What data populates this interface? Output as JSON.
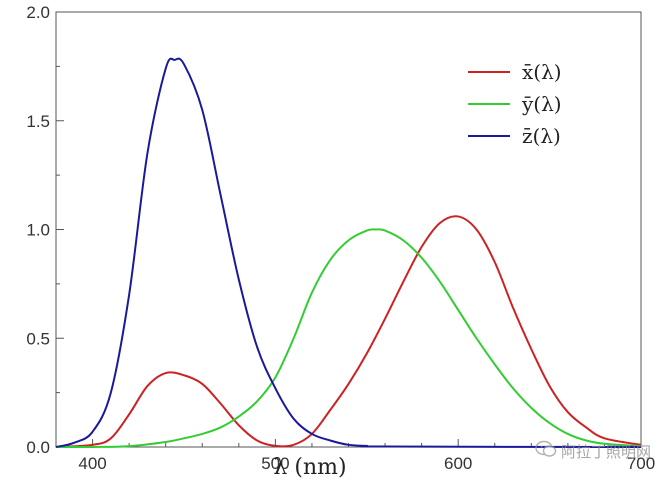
{
  "chart_data": {
    "type": "line",
    "title": "",
    "xlabel": "λ (nm)",
    "ylabel": "",
    "xlim": [
      380,
      700
    ],
    "ylim": [
      0,
      2.0
    ],
    "x_ticks": [
      400,
      500,
      600,
      700
    ],
    "y_ticks": [
      0.0,
      0.5,
      1.0,
      1.5,
      2.0
    ],
    "x_tick_labels": [
      "400",
      "500",
      "600",
      "700"
    ],
    "y_tick_labels": [
      "0.0",
      "0.5",
      "1.0",
      "1.5",
      "2.0"
    ],
    "legend_position": "top-right",
    "grid": false,
    "series": [
      {
        "name": "x̄(λ)",
        "color": "#cc2222",
        "points": [
          [
            380,
            0.0
          ],
          [
            400,
            0.01
          ],
          [
            410,
            0.04
          ],
          [
            420,
            0.15
          ],
          [
            430,
            0.28
          ],
          [
            440,
            0.34
          ],
          [
            450,
            0.33
          ],
          [
            460,
            0.29
          ],
          [
            470,
            0.2
          ],
          [
            480,
            0.1
          ],
          [
            490,
            0.03
          ],
          [
            500,
            0.005
          ],
          [
            510,
            0.01
          ],
          [
            520,
            0.06
          ],
          [
            530,
            0.17
          ],
          [
            540,
            0.29
          ],
          [
            550,
            0.43
          ],
          [
            560,
            0.59
          ],
          [
            570,
            0.76
          ],
          [
            580,
            0.92
          ],
          [
            590,
            1.03
          ],
          [
            600,
            1.06
          ],
          [
            610,
            1.0
          ],
          [
            620,
            0.85
          ],
          [
            630,
            0.64
          ],
          [
            640,
            0.45
          ],
          [
            650,
            0.28
          ],
          [
            660,
            0.16
          ],
          [
            670,
            0.09
          ],
          [
            680,
            0.04
          ],
          [
            700,
            0.01
          ]
        ]
      },
      {
        "name": "ȳ(λ)",
        "color": "#33cc33",
        "points": [
          [
            380,
            0.0
          ],
          [
            400,
            0.0
          ],
          [
            420,
            0.004
          ],
          [
            440,
            0.023
          ],
          [
            450,
            0.04
          ],
          [
            460,
            0.06
          ],
          [
            470,
            0.09
          ],
          [
            480,
            0.14
          ],
          [
            490,
            0.21
          ],
          [
            500,
            0.32
          ],
          [
            510,
            0.5
          ],
          [
            520,
            0.71
          ],
          [
            530,
            0.86
          ],
          [
            540,
            0.95
          ],
          [
            550,
            0.995
          ],
          [
            555,
            1.0
          ],
          [
            560,
            0.995
          ],
          [
            570,
            0.95
          ],
          [
            580,
            0.87
          ],
          [
            590,
            0.76
          ],
          [
            600,
            0.63
          ],
          [
            610,
            0.5
          ],
          [
            620,
            0.38
          ],
          [
            630,
            0.27
          ],
          [
            640,
            0.18
          ],
          [
            650,
            0.11
          ],
          [
            660,
            0.06
          ],
          [
            670,
            0.03
          ],
          [
            680,
            0.015
          ],
          [
            700,
            0.004
          ]
        ]
      },
      {
        "name": "z̄(λ)",
        "color": "#1a1a99",
        "points": [
          [
            380,
            0.0
          ],
          [
            390,
            0.02
          ],
          [
            400,
            0.07
          ],
          [
            410,
            0.25
          ],
          [
            420,
            0.7
          ],
          [
            430,
            1.35
          ],
          [
            440,
            1.74
          ],
          [
            445,
            1.78
          ],
          [
            450,
            1.76
          ],
          [
            460,
            1.55
          ],
          [
            470,
            1.16
          ],
          [
            480,
            0.77
          ],
          [
            490,
            0.46
          ],
          [
            500,
            0.27
          ],
          [
            510,
            0.13
          ],
          [
            520,
            0.06
          ],
          [
            530,
            0.03
          ],
          [
            540,
            0.01
          ],
          [
            550,
            0.005
          ],
          [
            560,
            0.002
          ],
          [
            700,
            0.0
          ]
        ]
      }
    ]
  },
  "watermark": {
    "icon": "wechat-icon",
    "text": "阿拉丁照明网"
  }
}
